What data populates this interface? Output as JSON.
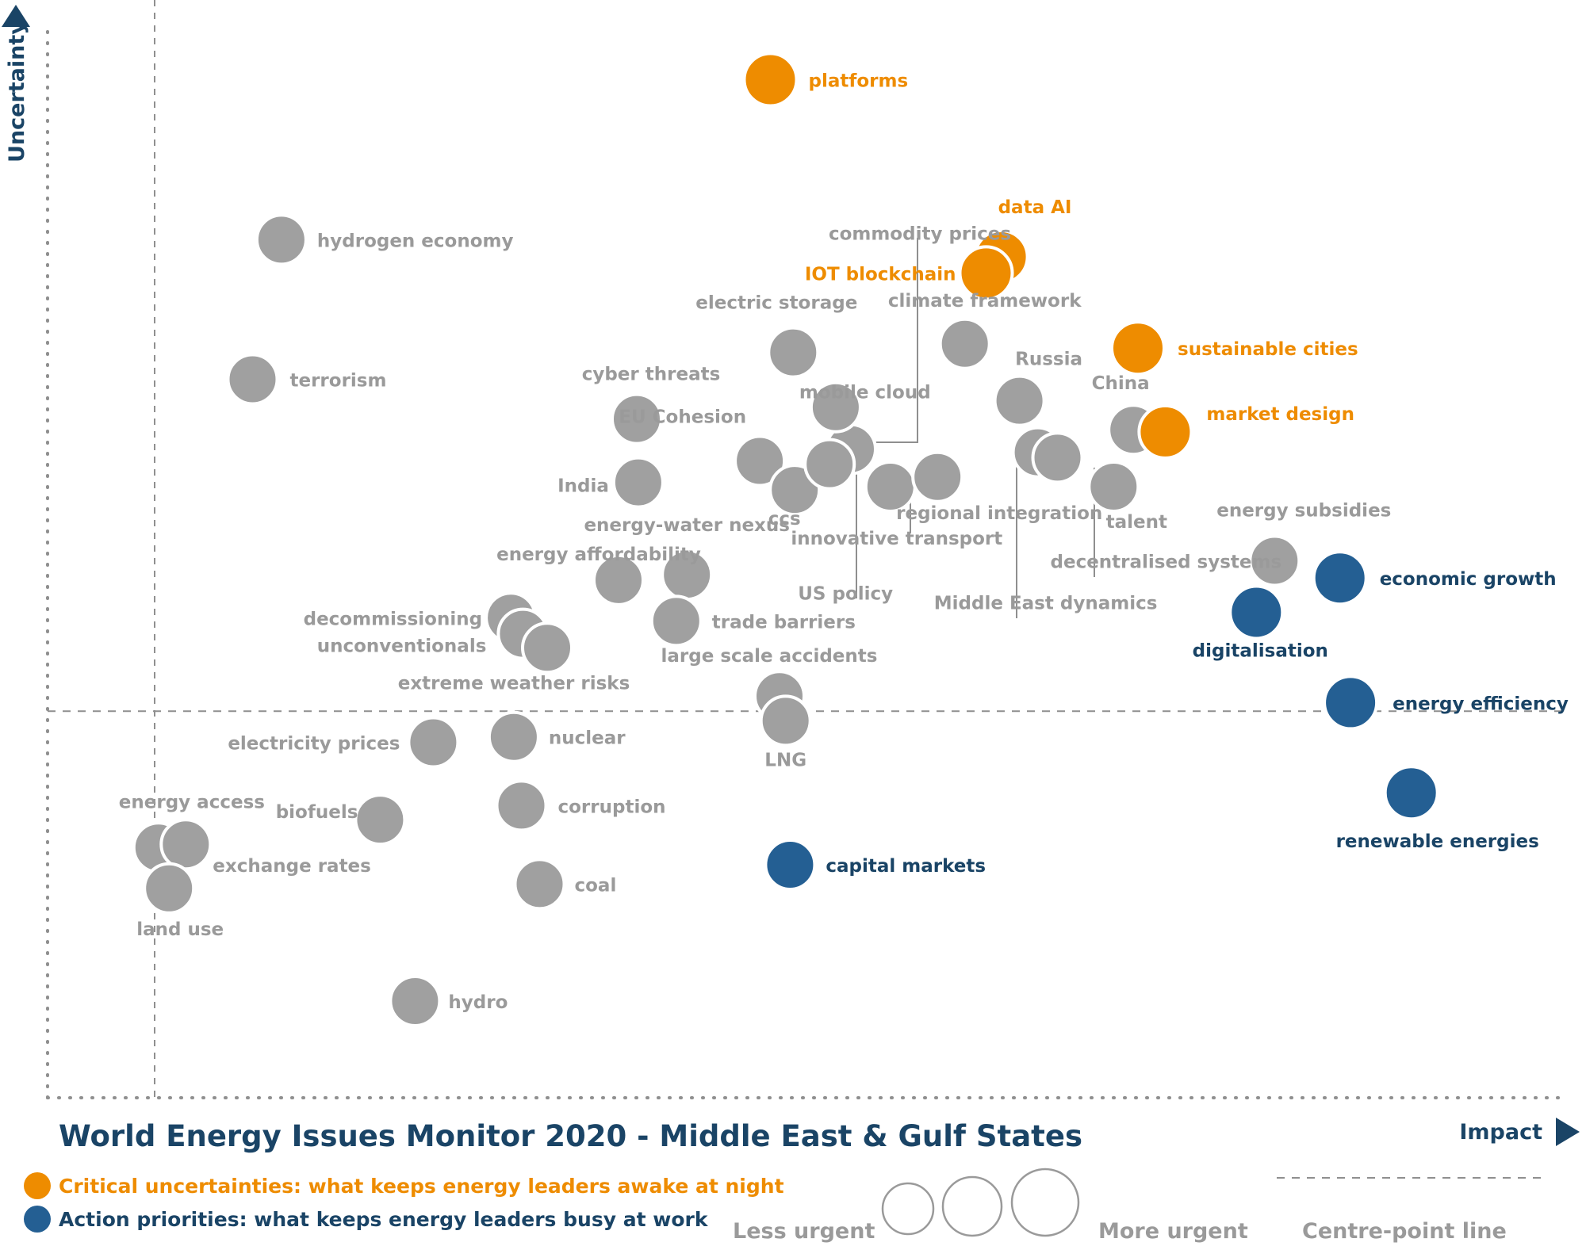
{
  "title": "World Energy Issues Monitor 2020 - Middle East & Gulf States",
  "colors": {
    "grey": "#a0a0a0",
    "grey_label": "#9a9a9a",
    "orange": "#ee8c00",
    "blue": "#245f93",
    "navy": "#1a4466"
  },
  "legend": {
    "critical": "Critical uncertainties: what keeps energy leaders awake at night",
    "action": "Action priorities: what keeps energy leaders busy at work",
    "less_urgent": "Less urgent",
    "more_urgent": "More urgent",
    "centre_line": "Centre-point  line"
  },
  "chart_data": {
    "type": "scatter",
    "title": "World Energy Issues Monitor 2020 - Middle East & Gulf States",
    "xlabel": "Impact",
    "ylabel": "Uncertainty",
    "xlim": [
      0,
      100
    ],
    "ylim": [
      0,
      100
    ],
    "centre_point": {
      "x": 50,
      "y": 36
    },
    "grid": false,
    "legend_position": "bottom-left",
    "series": [
      {
        "category": "critical",
        "color": "#ee8c00",
        "points": [
          {
            "label": "platforms",
            "x": 47.6,
            "y": 94.8,
            "urgency": 2
          },
          {
            "label": "data AI",
            "x": 62.8,
            "y": 78.3,
            "urgency": 2
          },
          {
            "label": "IOT blockchain",
            "x": 61.8,
            "y": 76.8,
            "urgency": 2
          },
          {
            "label": "sustainable cities",
            "x": 71.8,
            "y": 69.8,
            "urgency": 2
          },
          {
            "label": "market design",
            "x": 73.6,
            "y": 62.0,
            "urgency": 2
          }
        ]
      },
      {
        "category": "action",
        "color": "#245f93",
        "points": [
          {
            "label": "economic growth",
            "x": 85.1,
            "y": 48.4,
            "urgency": 2
          },
          {
            "label": "digitalisation",
            "x": 79.6,
            "y": 45.2,
            "urgency": 2
          },
          {
            "label": "energy efficiency",
            "x": 85.8,
            "y": 36.8,
            "urgency": 2
          },
          {
            "label": "renewable energies",
            "x": 89.8,
            "y": 28.4,
            "urgency": 2
          },
          {
            "label": "capital markets",
            "x": 48.9,
            "y": 21.7,
            "urgency": 1
          }
        ]
      },
      {
        "category": "other",
        "color": "#a0a0a0",
        "points": [
          {
            "label": "hydrogen economy",
            "x": 15.4,
            "y": 79.9,
            "urgency": 1
          },
          {
            "label": "terrorism",
            "x": 13.5,
            "y": 66.9,
            "urgency": 1
          },
          {
            "label": "commodity prices",
            "x": 52.9,
            "y": 60.4,
            "urgency": 1
          },
          {
            "label": "electric storage",
            "x": 49.1,
            "y": 69.4,
            "urgency": 1
          },
          {
            "label": "climate framework",
            "x": 60.4,
            "y": 70.2,
            "urgency": 1
          },
          {
            "label": "mobile cloud",
            "x": 51.9,
            "y": 64.3,
            "urgency": 1
          },
          {
            "label": "Russia",
            "x": 64.0,
            "y": 64.9,
            "urgency": 1
          },
          {
            "label": "China",
            "x": 71.5,
            "y": 62.2,
            "urgency": 1
          },
          {
            "label": "cyber threats",
            "x": 38.8,
            "y": 63.2,
            "urgency": 1
          },
          {
            "label": "EU Cohesion",
            "x": 46.9,
            "y": 59.3,
            "urgency": 1
          },
          {
            "label": "India",
            "x": 38.9,
            "y": 57.3,
            "urgency": 1
          },
          {
            "label": "ccs",
            "x": 49.2,
            "y": 56.6,
            "urgency": 1
          },
          {
            "label": "US policy",
            "x": 51.5,
            "y": 59.0,
            "urgency": 1
          },
          {
            "label": "innovative transport",
            "x": 55.5,
            "y": 56.9,
            "urgency": 1
          },
          {
            "label": "regional integration",
            "x": 58.6,
            "y": 57.8,
            "urgency": 1
          },
          {
            "label": "Middle East dynamics",
            "x": 65.2,
            "y": 60.1,
            "urgency": 1
          },
          {
            "label": "decentralised systems",
            "x": 66.5,
            "y": 59.6,
            "urgency": 1
          },
          {
            "label": "talent",
            "x": 70.2,
            "y": 56.9,
            "urgency": 1
          },
          {
            "label": "energy subsidies",
            "x": 80.8,
            "y": 50.0,
            "urgency": 1
          },
          {
            "label": "energy-water nexus",
            "x": 42.1,
            "y": 48.7,
            "urgency": 1
          },
          {
            "label": "energy affordability",
            "x": 37.6,
            "y": 48.2,
            "urgency": 1
          },
          {
            "label": "decommissioning",
            "x": 30.5,
            "y": 44.7,
            "urgency": 1
          },
          {
            "label": "unconventionals",
            "x": 31.3,
            "y": 43.2,
            "urgency": 1
          },
          {
            "label": "extreme weather risks",
            "x": 32.9,
            "y": 41.9,
            "urgency": 1
          },
          {
            "label": "trade barriers",
            "x": 41.4,
            "y": 44.4,
            "urgency": 1
          },
          {
            "label": "large scale accidents",
            "x": 48.2,
            "y": 37.4,
            "urgency": 1
          },
          {
            "label": "LNG",
            "x": 48.6,
            "y": 35.1,
            "urgency": 1
          },
          {
            "label": "electricity prices",
            "x": 25.4,
            "y": 33.1,
            "urgency": 1
          },
          {
            "label": "nuclear",
            "x": 30.7,
            "y": 33.6,
            "urgency": 1
          },
          {
            "label": "corruption",
            "x": 31.2,
            "y": 27.2,
            "urgency": 1
          },
          {
            "label": "biofuels",
            "x": 21.9,
            "y": 25.9,
            "urgency": 1
          },
          {
            "label": "energy access",
            "x": 7.3,
            "y": 23.3,
            "urgency": 1
          },
          {
            "label": "exchange rates",
            "x": 9.1,
            "y": 23.6,
            "urgency": 1
          },
          {
            "label": "land use",
            "x": 8.0,
            "y": 19.5,
            "urgency": 1
          },
          {
            "label": "coal",
            "x": 32.4,
            "y": 19.9,
            "urgency": 1
          },
          {
            "label": "hydro",
            "x": 24.2,
            "y": 9.0,
            "urgency": 1
          }
        ]
      }
    ]
  }
}
